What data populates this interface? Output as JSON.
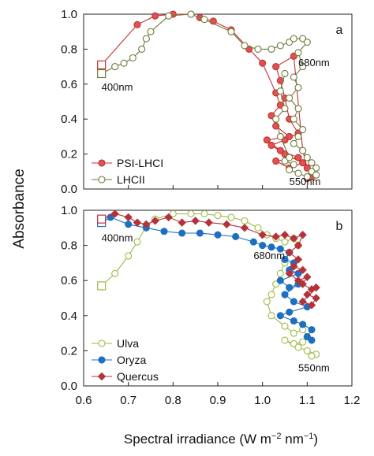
{
  "figure": {
    "ylabel": "Absorbance",
    "xlabel_main": "Spectral irradiance (W m",
    "xlabel_exp1": "−2",
    "xlabel_mid": " nm",
    "xlabel_exp2": "−1",
    "xlabel_end": ")"
  },
  "chart_data": [
    {
      "type": "scatter",
      "panel_label": "a",
      "xlim": [
        0.6,
        1.2
      ],
      "ylim": [
        0,
        1.0
      ],
      "ytick_labels": [
        "0.0",
        "0.2",
        "0.4",
        "0.6",
        "0.8",
        "1.0"
      ],
      "grid": false,
      "legend_position": "bottom-left",
      "annotations": [
        {
          "text": "400nm",
          "x": 0.64,
          "y": 0.58
        },
        {
          "text": "680nm",
          "x": 1.08,
          "y": 0.72
        },
        {
          "text": "550nm",
          "x": 1.06,
          "y": 0.04
        }
      ],
      "series": [
        {
          "name": "PSI-LHCI",
          "color": "#e05252",
          "edge": "#c43030",
          "marker": "circle-filled",
          "start_marker": "square",
          "points": [
            [
              0.64,
              0.71
            ],
            [
              0.72,
              0.94
            ],
            [
              0.76,
              0.99
            ],
            [
              0.8,
              1.0
            ],
            [
              0.84,
              1.0
            ],
            [
              0.86,
              0.98
            ],
            [
              0.89,
              0.96
            ],
            [
              0.93,
              0.91
            ],
            [
              0.97,
              0.8
            ],
            [
              1.0,
              0.72
            ],
            [
              1.03,
              0.55
            ],
            [
              1.04,
              0.48
            ],
            [
              1.02,
              0.42
            ],
            [
              1.03,
              0.36
            ],
            [
              1.06,
              0.3
            ],
            [
              1.01,
              0.28
            ],
            [
              1.04,
              0.22
            ],
            [
              1.08,
              0.18
            ],
            [
              1.03,
              0.16
            ],
            [
              1.06,
              0.12
            ],
            [
              1.09,
              0.15
            ],
            [
              1.05,
              0.2
            ],
            [
              1.02,
              0.25
            ],
            [
              1.05,
              0.28
            ],
            [
              1.08,
              0.32
            ],
            [
              1.06,
              0.4
            ],
            [
              1.05,
              0.52
            ],
            [
              1.04,
              0.62
            ],
            [
              1.03,
              0.7
            ],
            [
              1.07,
              0.76
            ],
            [
              1.09,
              0.22
            ],
            [
              1.1,
              0.12
            ],
            [
              1.11,
              0.08
            ],
            [
              1.1,
              0.06
            ],
            [
              1.11,
              0.07
            ]
          ]
        },
        {
          "name": "LHCII",
          "color": "#ffffff",
          "edge": "#707a3a",
          "marker": "circle-open",
          "start_marker": "square",
          "points": [
            [
              0.64,
              0.66
            ],
            [
              0.67,
              0.7
            ],
            [
              0.69,
              0.72
            ],
            [
              0.71,
              0.75
            ],
            [
              0.73,
              0.8
            ],
            [
              0.74,
              0.86
            ],
            [
              0.75,
              0.9
            ],
            [
              0.79,
              0.99
            ],
            [
              0.84,
              1.0
            ],
            [
              0.87,
              0.97
            ],
            [
              0.93,
              0.9
            ],
            [
              0.96,
              0.82
            ],
            [
              0.99,
              0.8
            ],
            [
              1.02,
              0.8
            ],
            [
              1.04,
              0.82
            ],
            [
              1.06,
              0.84
            ],
            [
              1.07,
              0.86
            ],
            [
              1.09,
              0.86
            ],
            [
              1.1,
              0.84
            ],
            [
              1.08,
              0.78
            ],
            [
              1.09,
              0.7
            ],
            [
              1.07,
              0.64
            ],
            [
              1.08,
              0.58
            ],
            [
              1.06,
              0.52
            ],
            [
              1.08,
              0.46
            ],
            [
              1.07,
              0.4
            ],
            [
              1.09,
              0.34
            ],
            [
              1.08,
              0.3
            ],
            [
              1.07,
              0.26
            ],
            [
              1.09,
              0.22
            ],
            [
              1.1,
              0.18
            ],
            [
              1.11,
              0.15
            ],
            [
              1.12,
              0.12
            ],
            [
              1.11,
              0.1
            ],
            [
              1.12,
              0.08
            ],
            [
              1.1,
              0.07
            ],
            [
              1.08,
              0.09
            ],
            [
              1.06,
              0.11
            ],
            [
              1.07,
              0.14
            ],
            [
              1.05,
              0.16
            ],
            [
              1.06,
              0.18
            ],
            [
              1.04,
              0.3
            ],
            [
              1.03,
              0.4
            ],
            [
              1.05,
              0.46
            ],
            [
              1.04,
              0.56
            ],
            [
              1.05,
              0.66
            ]
          ]
        }
      ]
    },
    {
      "type": "scatter",
      "panel_label": "b",
      "xlim": [
        0.6,
        1.2
      ],
      "ylim": [
        0,
        1.0
      ],
      "xtick_labels": [
        "0.6",
        "0.7",
        "0.8",
        "0.9",
        "1.0",
        "1.1",
        "1.2"
      ],
      "ytick_labels": [
        "0.0",
        "0.2",
        "0.4",
        "0.6",
        "0.8",
        "1.0"
      ],
      "grid": false,
      "legend_position": "bottom-left",
      "annotations": [
        {
          "text": "400nm",
          "x": 0.64,
          "y": 0.84
        },
        {
          "text": "680nm",
          "x": 0.98,
          "y": 0.74
        },
        {
          "text": "550nm",
          "x": 1.08,
          "y": 0.1
        }
      ],
      "series": [
        {
          "name": "Ulva",
          "color": "#ffffff",
          "edge": "#9bbb45",
          "marker": "circle-open",
          "start_marker": "square",
          "points": [
            [
              0.64,
              0.57
            ],
            [
              0.67,
              0.64
            ],
            [
              0.7,
              0.74
            ],
            [
              0.72,
              0.82
            ],
            [
              0.74,
              0.91
            ],
            [
              0.76,
              0.95
            ],
            [
              0.8,
              0.98
            ],
            [
              0.84,
              0.98
            ],
            [
              0.87,
              0.98
            ],
            [
              0.9,
              0.97
            ],
            [
              0.93,
              0.96
            ],
            [
              0.96,
              0.94
            ],
            [
              0.99,
              0.9
            ],
            [
              1.01,
              0.86
            ],
            [
              1.03,
              0.84
            ],
            [
              1.05,
              0.82
            ],
            [
              1.07,
              0.84
            ],
            [
              1.08,
              0.8
            ],
            [
              1.06,
              0.76
            ],
            [
              1.05,
              0.7
            ],
            [
              1.04,
              0.64
            ],
            [
              1.03,
              0.58
            ],
            [
              1.02,
              0.52
            ],
            [
              1.01,
              0.48
            ],
            [
              1.02,
              0.4
            ],
            [
              1.05,
              0.34
            ],
            [
              1.07,
              0.3
            ],
            [
              1.09,
              0.32
            ],
            [
              1.1,
              0.28
            ],
            [
              1.09,
              0.25
            ],
            [
              1.07,
              0.24
            ],
            [
              1.05,
              0.26
            ],
            [
              1.08,
              0.22
            ],
            [
              1.1,
              0.2
            ],
            [
              1.12,
              0.18
            ],
            [
              1.11,
              0.17
            ]
          ]
        },
        {
          "name": "Oryza",
          "color": "#1f6fc0",
          "edge": "#1f6fc0",
          "marker": "circle-filled",
          "start_marker": "square",
          "points": [
            [
              0.64,
              0.93
            ],
            [
              0.66,
              0.96
            ],
            [
              0.7,
              0.92
            ],
            [
              0.74,
              0.9
            ],
            [
              0.78,
              0.88
            ],
            [
              0.82,
              0.87
            ],
            [
              0.86,
              0.87
            ],
            [
              0.9,
              0.86
            ],
            [
              0.94,
              0.85
            ],
            [
              0.98,
              0.82
            ],
            [
              1.0,
              0.8
            ],
            [
              1.02,
              0.79
            ],
            [
              1.04,
              0.78
            ],
            [
              1.06,
              0.76
            ],
            [
              1.05,
              0.72
            ],
            [
              1.07,
              0.7
            ],
            [
              1.06,
              0.66
            ],
            [
              1.08,
              0.64
            ],
            [
              1.04,
              0.6
            ],
            [
              1.06,
              0.56
            ],
            [
              1.08,
              0.58
            ],
            [
              1.05,
              0.52
            ],
            [
              1.07,
              0.48
            ],
            [
              1.1,
              0.45
            ],
            [
              1.06,
              0.42
            ],
            [
              1.04,
              0.4
            ],
            [
              1.07,
              0.37
            ],
            [
              1.09,
              0.35
            ],
            [
              1.11,
              0.32
            ],
            [
              1.1,
              0.28
            ],
            [
              1.11,
              0.26
            ]
          ]
        },
        {
          "name": "Quercus",
          "color": "#b5323a",
          "edge": "#b5323a",
          "marker": "diamond",
          "start_marker": "square",
          "points": [
            [
              0.64,
              0.95
            ],
            [
              0.67,
              0.98
            ],
            [
              0.7,
              0.96
            ],
            [
              0.72,
              0.93
            ],
            [
              0.74,
              0.92
            ],
            [
              0.76,
              0.94
            ],
            [
              0.79,
              0.96
            ],
            [
              0.82,
              0.93
            ],
            [
              0.85,
              0.94
            ],
            [
              0.88,
              0.93
            ],
            [
              0.92,
              0.92
            ],
            [
              0.96,
              0.9
            ],
            [
              1.0,
              0.86
            ],
            [
              1.03,
              0.85
            ],
            [
              1.05,
              0.86
            ],
            [
              1.07,
              0.84
            ],
            [
              1.09,
              0.86
            ],
            [
              1.08,
              0.8
            ],
            [
              1.06,
              0.76
            ],
            [
              1.08,
              0.72
            ],
            [
              1.07,
              0.68
            ],
            [
              1.09,
              0.66
            ],
            [
              1.06,
              0.64
            ],
            [
              1.08,
              0.6
            ],
            [
              1.1,
              0.62
            ],
            [
              1.09,
              0.58
            ],
            [
              1.11,
              0.55
            ],
            [
              1.1,
              0.52
            ],
            [
              1.12,
              0.5
            ],
            [
              1.11,
              0.46
            ],
            [
              1.09,
              0.48
            ],
            [
              1.12,
              0.56
            ]
          ]
        }
      ]
    }
  ]
}
